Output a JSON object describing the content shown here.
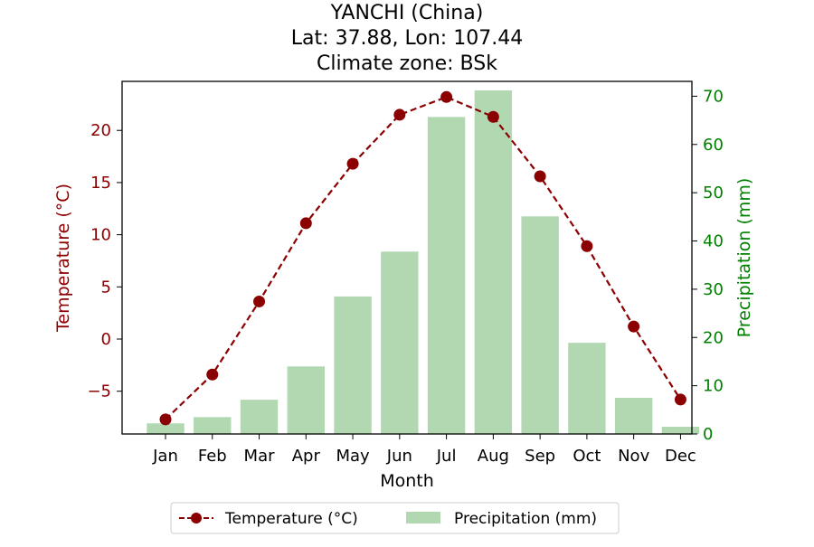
{
  "chart_data": {
    "type": "bar+line",
    "title_lines": [
      "YANCHI (China)",
      "Lat: 37.88, Lon: 107.44",
      "Climate zone: BSk"
    ],
    "xlabel": "Month",
    "categories": [
      "Jan",
      "Feb",
      "Mar",
      "Apr",
      "May",
      "Jun",
      "Jul",
      "Aug",
      "Sep",
      "Oct",
      "Nov",
      "Dec"
    ],
    "left_axis": {
      "label": "Temperature (°C)",
      "ylim": [
        -9.1,
        24.7
      ],
      "ticks": [
        -5,
        0,
        5,
        10,
        15,
        20
      ],
      "tick_labels": [
        "−5",
        "0",
        "5",
        "10",
        "15",
        "20"
      ],
      "color": "#8b0000"
    },
    "right_axis": {
      "label": "Precipitation (mm)",
      "ylim": [
        0,
        71.2
      ],
      "ticks": [
        0,
        10,
        20,
        30,
        40,
        50,
        60,
        70
      ],
      "tick_labels": [
        "0",
        "10",
        "20",
        "30",
        "40",
        "50",
        "60",
        "70"
      ],
      "color": "#008000"
    },
    "series": [
      {
        "name": "Temperature (°C)",
        "kind": "line",
        "axis": "left",
        "color": "#8b0000",
        "values": [
          -7.7,
          -3.4,
          3.6,
          11.1,
          16.8,
          21.5,
          23.2,
          21.3,
          15.6,
          8.9,
          1.2,
          -5.8
        ]
      },
      {
        "name": "Precipitation (mm)",
        "kind": "bar",
        "axis": "right",
        "color": "#b2d8b2",
        "values": [
          2.2,
          3.5,
          7.1,
          14.0,
          28.5,
          37.8,
          65.7,
          71.2,
          45.1,
          18.9,
          7.5,
          1.5
        ]
      }
    ],
    "legend_position": "bottom-center",
    "grid": false
  }
}
